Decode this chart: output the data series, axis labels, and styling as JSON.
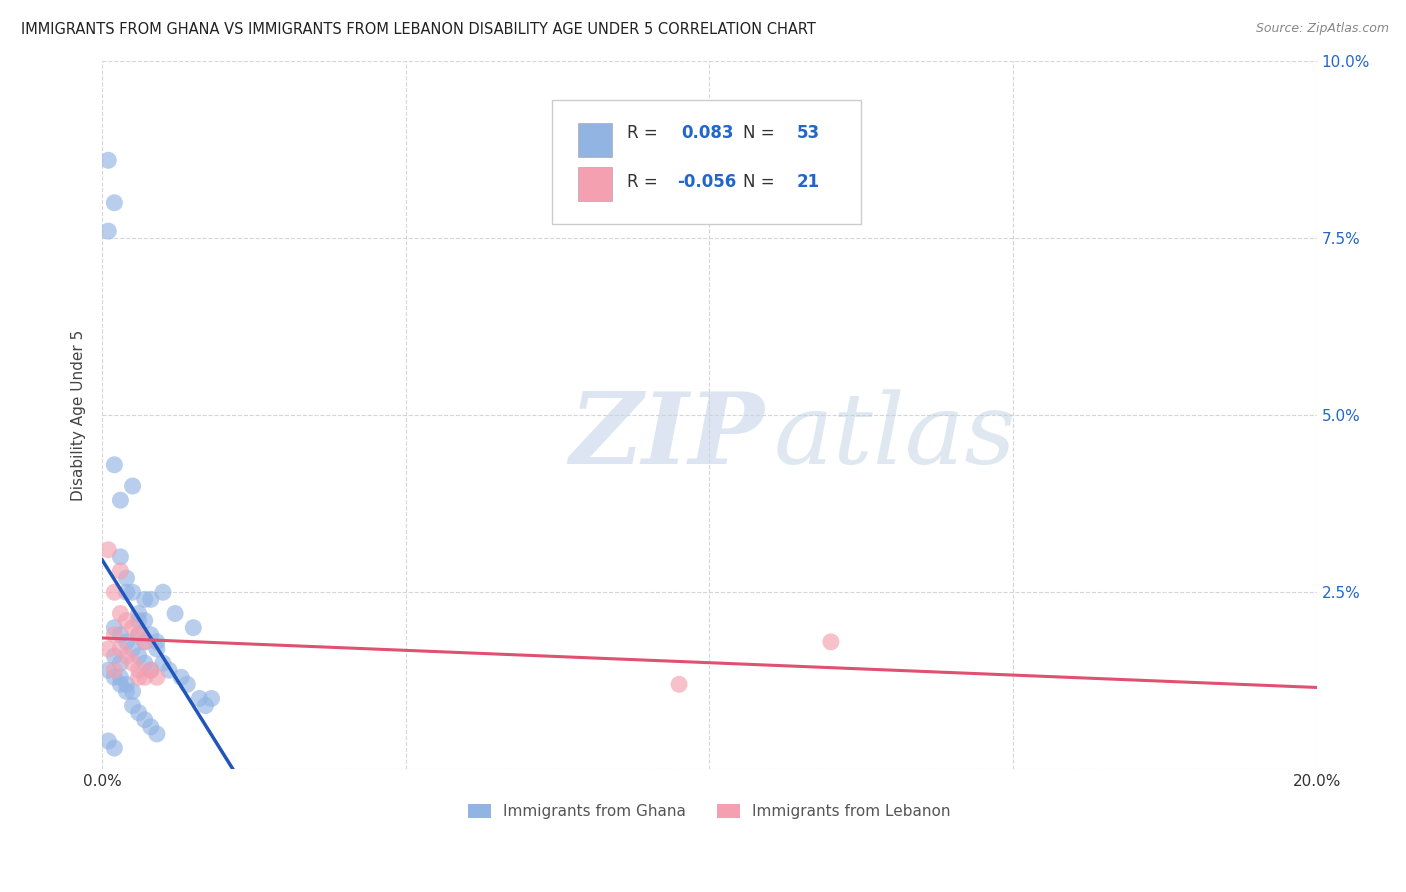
{
  "title": "IMMIGRANTS FROM GHANA VS IMMIGRANTS FROM LEBANON DISABILITY AGE UNDER 5 CORRELATION CHART",
  "source": "Source: ZipAtlas.com",
  "ylabel": "Disability Age Under 5",
  "xlim": [
    0.0,
    0.2
  ],
  "ylim": [
    0.0,
    0.1
  ],
  "xtick_positions": [
    0.0,
    0.05,
    0.1,
    0.15,
    0.2
  ],
  "xticklabels": [
    "0.0%",
    "",
    "",
    "",
    "20.0%"
  ],
  "ytick_positions": [
    0.0,
    0.025,
    0.05,
    0.075,
    0.1
  ],
  "yticklabels_right": [
    "",
    "2.5%",
    "5.0%",
    "7.5%",
    "10.0%"
  ],
  "ghana_R": 0.083,
  "ghana_N": 53,
  "lebanon_R": -0.056,
  "lebanon_N": 21,
  "ghana_color": "#92b4e3",
  "lebanon_color": "#f4a0b0",
  "ghana_line_color": "#2255bb",
  "lebanon_line_color": "#e05070",
  "dashed_line_color": "#aabbcc",
  "ghana_scatter_x": [
    0.001,
    0.002,
    0.001,
    0.002,
    0.003,
    0.003,
    0.004,
    0.004,
    0.005,
    0.005,
    0.006,
    0.006,
    0.006,
    0.007,
    0.007,
    0.007,
    0.008,
    0.008,
    0.009,
    0.009,
    0.01,
    0.01,
    0.011,
    0.012,
    0.013,
    0.014,
    0.015,
    0.016,
    0.017,
    0.018,
    0.002,
    0.003,
    0.004,
    0.005,
    0.006,
    0.007,
    0.008,
    0.003,
    0.004,
    0.005,
    0.002,
    0.003,
    0.001,
    0.002,
    0.003,
    0.004,
    0.005,
    0.006,
    0.007,
    0.008,
    0.009,
    0.001,
    0.002
  ],
  "ghana_scatter_y": [
    0.086,
    0.08,
    0.076,
    0.043,
    0.038,
    0.03,
    0.027,
    0.025,
    0.04,
    0.025,
    0.022,
    0.021,
    0.019,
    0.024,
    0.021,
    0.018,
    0.024,
    0.019,
    0.018,
    0.017,
    0.025,
    0.015,
    0.014,
    0.022,
    0.013,
    0.012,
    0.02,
    0.01,
    0.009,
    0.01,
    0.02,
    0.019,
    0.018,
    0.017,
    0.016,
    0.015,
    0.014,
    0.013,
    0.012,
    0.011,
    0.016,
    0.015,
    0.014,
    0.013,
    0.012,
    0.011,
    0.009,
    0.008,
    0.007,
    0.006,
    0.005,
    0.004,
    0.003
  ],
  "lebanon_scatter_x": [
    0.001,
    0.002,
    0.002,
    0.003,
    0.003,
    0.003,
    0.004,
    0.004,
    0.005,
    0.005,
    0.006,
    0.006,
    0.006,
    0.007,
    0.007,
    0.008,
    0.009,
    0.001,
    0.002,
    0.12,
    0.095
  ],
  "lebanon_scatter_y": [
    0.031,
    0.025,
    0.019,
    0.028,
    0.022,
    0.017,
    0.021,
    0.016,
    0.02,
    0.015,
    0.019,
    0.014,
    0.013,
    0.018,
    0.013,
    0.014,
    0.013,
    0.017,
    0.014,
    0.018,
    0.012
  ],
  "watermark_zip": "ZIP",
  "watermark_atlas": "atlas",
  "background_color": "#ffffff",
  "grid_color": "#cccccc",
  "title_fontsize": 10.5,
  "axis_label_fontsize": 11,
  "tick_fontsize": 11,
  "right_tick_color": "#2266cc",
  "bottom_tick_color": "#333333",
  "stat_box_line1_r_label": "R = ",
  "stat_box_line1_r_val": " 0.083",
  "stat_box_line1_n_label": "  N = ",
  "stat_box_line1_n_val": "53",
  "stat_box_line2_r_label": "R = ",
  "stat_box_line2_r_val": "-0.056",
  "stat_box_line2_n_label": "  N = ",
  "stat_box_line2_n_val": "21",
  "stat_color_values": "#2266cc",
  "stat_color_labels": "#333333"
}
